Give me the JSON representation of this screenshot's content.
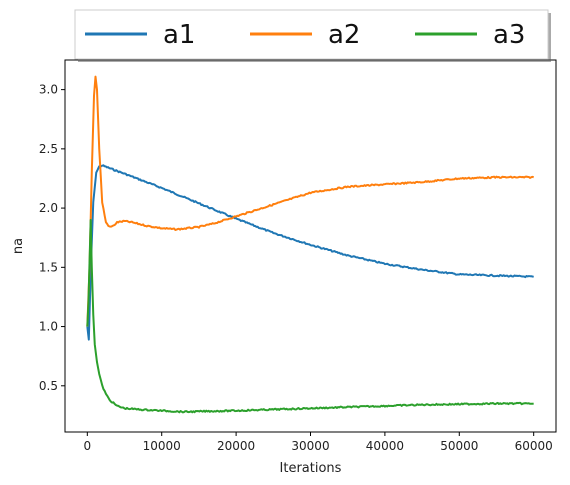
{
  "chart_data": {
    "type": "line",
    "title": "",
    "xlabel": "Iterations",
    "ylabel": "na",
    "xlim": [
      -3000,
      63000
    ],
    "ylim": [
      0.11,
      3.25
    ],
    "xticks": [
      0,
      10000,
      20000,
      30000,
      40000,
      50000,
      60000
    ],
    "yticks": [
      0.5,
      1.0,
      1.5,
      2.0,
      2.5,
      3.0
    ],
    "xtick_labels": [
      "0",
      "10000",
      "20000",
      "30000",
      "40000",
      "50000",
      "60000"
    ],
    "ytick_labels": [
      "0.5",
      "1.0",
      "1.5",
      "2.0",
      "2.5",
      "3.0"
    ],
    "grid": false,
    "legend": {
      "placement": "top-center, outside",
      "columns": 3
    },
    "series": [
      {
        "name": "a1",
        "color": "#1f77b4",
        "x": [
          0,
          200,
          500,
          800,
          1200,
          1600,
          2000,
          5000,
          10000,
          15000,
          20000,
          25000,
          30000,
          35000,
          40000,
          45000,
          50000,
          55000,
          60000
        ],
        "y": [
          1.0,
          0.89,
          1.55,
          2.05,
          2.3,
          2.35,
          2.36,
          2.29,
          2.17,
          2.04,
          1.91,
          1.79,
          1.69,
          1.6,
          1.53,
          1.48,
          1.44,
          1.43,
          1.42
        ]
      },
      {
        "name": "a2",
        "color": "#ff7f0e",
        "x": [
          0,
          300,
          600,
          900,
          1100,
          1300,
          1600,
          2000,
          2500,
          3000,
          3500,
          4000,
          5000,
          6000,
          8000,
          10000,
          12000,
          15000,
          17000,
          20000,
          25000,
          30000,
          35000,
          40000,
          45000,
          50000,
          55000,
          60000
        ],
        "y": [
          1.0,
          1.5,
          2.3,
          2.95,
          3.11,
          3.0,
          2.5,
          2.05,
          1.88,
          1.84,
          1.85,
          1.88,
          1.89,
          1.88,
          1.85,
          1.83,
          1.82,
          1.84,
          1.87,
          1.93,
          2.03,
          2.13,
          2.18,
          2.2,
          2.22,
          2.25,
          2.26,
          2.26
        ]
      },
      {
        "name": "a3",
        "color": "#2ca02c",
        "x": [
          0,
          150,
          300,
          450,
          600,
          800,
          1000,
          1300,
          1600,
          2000,
          2500,
          3000,
          4000,
          5000,
          7000,
          10000,
          13000,
          16000,
          20000,
          25000,
          30000,
          35000,
          40000,
          45000,
          50000,
          55000,
          60000
        ],
        "y": [
          1.0,
          1.2,
          1.55,
          1.9,
          1.5,
          1.1,
          0.85,
          0.7,
          0.6,
          0.5,
          0.43,
          0.38,
          0.33,
          0.31,
          0.3,
          0.29,
          0.28,
          0.285,
          0.29,
          0.3,
          0.31,
          0.32,
          0.33,
          0.34,
          0.345,
          0.35,
          0.35
        ]
      }
    ]
  }
}
